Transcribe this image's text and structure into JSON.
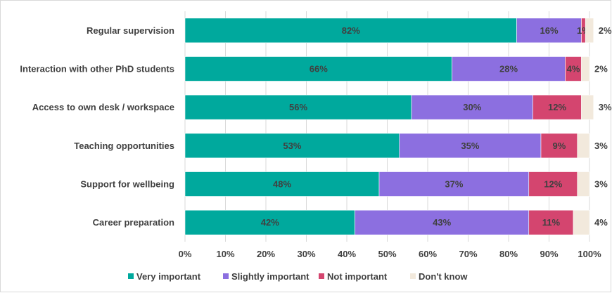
{
  "chart_data": {
    "type": "bar",
    "orientation": "horizontal",
    "stacked": true,
    "title": "",
    "xlabel": "",
    "ylabel": "",
    "xlim": [
      0,
      100
    ],
    "x_ticks": [
      "0%",
      "10%",
      "20%",
      "30%",
      "40%",
      "50%",
      "60%",
      "70%",
      "80%",
      "90%",
      "100%"
    ],
    "grid": "vertical",
    "legend_position": "bottom",
    "categories": [
      "Regular supervision",
      "Interaction with other PhD students",
      "Access to own desk / workspace",
      "Teaching opportunities",
      "Support for wellbeing",
      "Career preparation"
    ],
    "series": [
      {
        "name": "Very important",
        "color": "#00a99d",
        "values": [
          82,
          66,
          56,
          53,
          48,
          42
        ]
      },
      {
        "name": "Slightly important",
        "color": "#8c6fe0",
        "values": [
          16,
          28,
          30,
          35,
          37,
          43
        ]
      },
      {
        "name": "Not important",
        "color": "#d4456f",
        "values": [
          1,
          4,
          12,
          9,
          12,
          11
        ]
      },
      {
        "name": "Don't know",
        "color": "#f2e9dc",
        "values": [
          2,
          2,
          3,
          3,
          3,
          4
        ]
      }
    ]
  }
}
